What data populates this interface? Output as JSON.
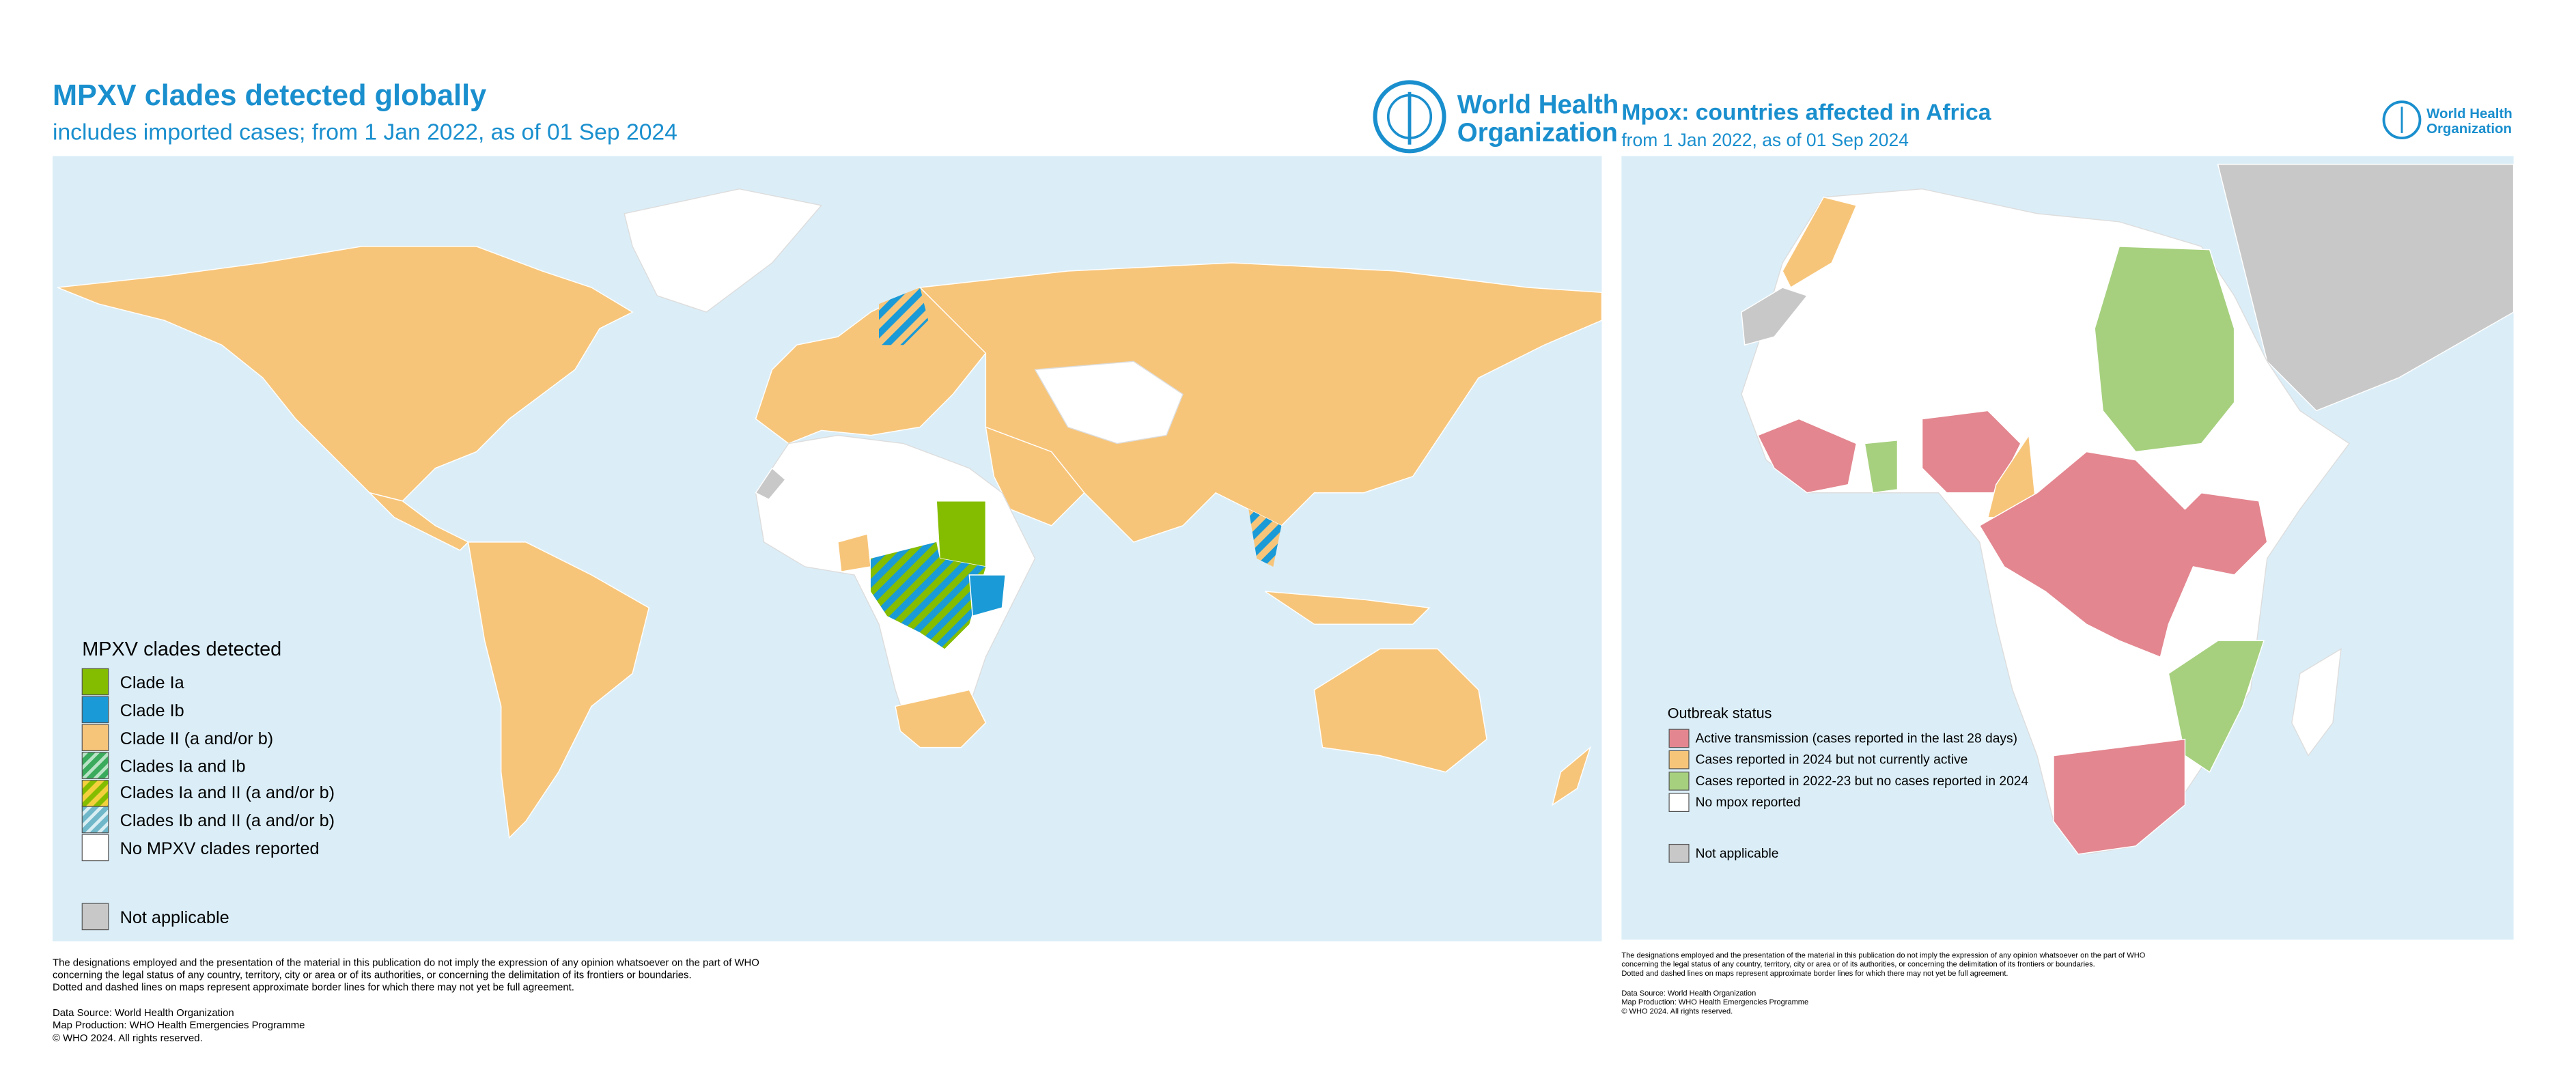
{
  "left_map": {
    "title": "MPXV clades detected globally",
    "subtitle": "includes imported cases; from 1 Jan 2022, as of 01 Sep 2024",
    "logo": [
      "World Health",
      "Organization"
    ],
    "legend": {
      "title": "MPXV clades detected",
      "items": [
        "Clade Ia",
        "Clade Ib",
        "Clade II (a and/or b)",
        "Clades Ia and Ib",
        "Clades Ia and II (a and/or b)",
        "Clades Ib and II (a and/or b)",
        "No MPXV clades reported"
      ],
      "not_applicable": "Not applicable"
    },
    "disclaimer": [
      "The designations employed and the presentation of the material in this publication do not imply the expression of any opinion whatsoever on the part of WHO",
      "concerning the legal status of any country, territory, city or area or of its authorities, or concerning the delimitation of its frontiers or boundaries.",
      "Dotted and dashed lines on maps represent approximate border lines for which there may not yet be full agreement."
    ],
    "credits": [
      "Data Source: World Health Organization",
      "Map Production: WHO Health Emergencies Programme",
      "© WHO 2024. All rights reserved."
    ]
  },
  "right_map": {
    "title": "Mpox: countries affected in Africa",
    "subtitle": "from 1 Jan 2022, as of 01 Sep 2024",
    "logo": [
      "World Health",
      "Organization"
    ],
    "legend": {
      "title": "Outbreak status",
      "items": [
        "Active transmission (cases reported in the last 28 days)",
        "Cases reported in 2024 but not currently active",
        "Cases reported in 2022-23 but no cases reported in 2024",
        "No mpox reported"
      ],
      "not_applicable": "Not applicable"
    },
    "disclaimer": [
      "The designations employed and the presentation of the material in this publication do not imply the expression of any opinion whatsoever on the part of WHO",
      "concerning the legal status of any country, territory, city or area or of its authorities, or concerning the delimitation of its frontiers or boundaries.",
      "Dotted and dashed lines on maps represent approximate border lines for which there may not yet be full agreement."
    ],
    "credits": [
      "Data Source: World Health Organization",
      "Map Production: WHO Health Emergencies Programme",
      "© WHO 2024. All rights reserved."
    ]
  }
}
